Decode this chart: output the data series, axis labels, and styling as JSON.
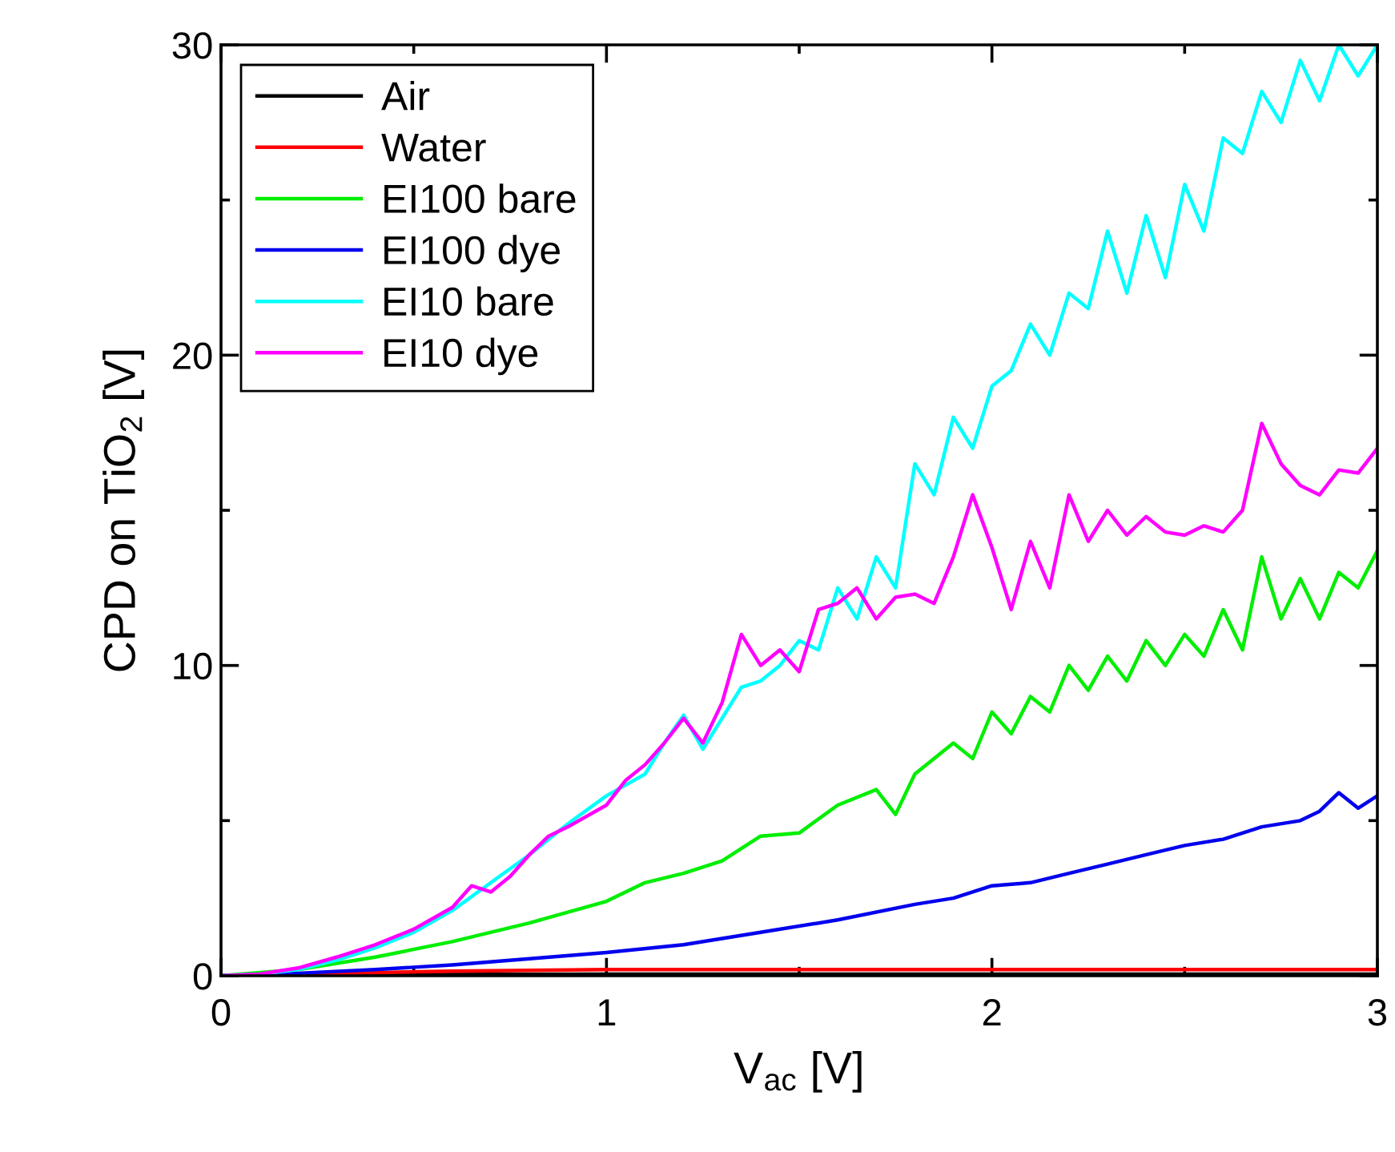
{
  "chart_data": {
    "type": "line",
    "xlabel": "V$_{ac}$ [V]",
    "ylabel": "CPD on TiO$_{2}$ [V]",
    "xlim": [
      0,
      3
    ],
    "ylim": [
      0,
      30
    ],
    "xticks": [
      0,
      1,
      2,
      3
    ],
    "yticks": [
      0,
      10,
      20,
      30
    ],
    "grid": false,
    "legend": "top left",
    "marker": "none",
    "line_style": "solid",
    "series": [
      {
        "name": "Air",
        "color": "#000000",
        "x": [
          0,
          0.2,
          0.5,
          1,
          1.5,
          2,
          2.5,
          3
        ],
        "values": [
          0,
          0.02,
          0.04,
          0.05,
          0.05,
          0.05,
          0.05,
          0.05
        ]
      },
      {
        "name": "Water",
        "color": "#ff0000",
        "x": [
          0,
          0.4,
          0.6,
          1,
          1.5,
          2,
          2.5,
          3
        ],
        "values": [
          0,
          0.1,
          0.15,
          0.2,
          0.2,
          0.2,
          0.2,
          0.2
        ]
      },
      {
        "name": "EI100 bare",
        "color": "#00ee00",
        "x": [
          0,
          0.2,
          0.4,
          0.6,
          0.8,
          1.0,
          1.1,
          1.2,
          1.3,
          1.4,
          1.5,
          1.6,
          1.7,
          1.75,
          1.8,
          1.9,
          1.95,
          2.0,
          2.05,
          2.1,
          2.15,
          2.2,
          2.25,
          2.3,
          2.35,
          2.4,
          2.45,
          2.5,
          2.55,
          2.6,
          2.65,
          2.7,
          2.75,
          2.8,
          2.85,
          2.9,
          2.95,
          3.0
        ],
        "values": [
          0,
          0.2,
          0.6,
          1.1,
          1.7,
          2.4,
          3.0,
          3.3,
          3.7,
          4.5,
          4.6,
          5.5,
          6.0,
          5.2,
          6.5,
          7.5,
          7.0,
          8.5,
          7.8,
          9.0,
          8.5,
          10.0,
          9.2,
          10.3,
          9.5,
          10.8,
          10.0,
          11.0,
          10.3,
          11.8,
          10.5,
          13.5,
          11.5,
          12.8,
          11.5,
          13.0,
          12.5,
          13.7
        ]
      },
      {
        "name": "EI100 dye",
        "color": "#0000ee",
        "x": [
          0,
          0.2,
          0.4,
          0.6,
          0.8,
          1.0,
          1.2,
          1.4,
          1.6,
          1.8,
          1.9,
          2.0,
          2.1,
          2.2,
          2.3,
          2.4,
          2.5,
          2.6,
          2.7,
          2.8,
          2.85,
          2.9,
          2.95,
          3.0
        ],
        "values": [
          0,
          0.08,
          0.2,
          0.35,
          0.55,
          0.75,
          1.0,
          1.4,
          1.8,
          2.3,
          2.5,
          2.9,
          3.0,
          3.3,
          3.6,
          3.9,
          4.2,
          4.4,
          4.8,
          5.0,
          5.3,
          5.9,
          5.4,
          5.8
        ]
      },
      {
        "name": "EI10 bare",
        "color": "#00ffff",
        "x": [
          0,
          0.1,
          0.2,
          0.3,
          0.4,
          0.5,
          0.6,
          0.7,
          0.8,
          0.9,
          1.0,
          1.1,
          1.15,
          1.2,
          1.25,
          1.3,
          1.35,
          1.4,
          1.45,
          1.5,
          1.55,
          1.6,
          1.65,
          1.7,
          1.75,
          1.8,
          1.85,
          1.9,
          1.95,
          2.0,
          2.05,
          2.1,
          2.15,
          2.2,
          2.25,
          2.3,
          2.35,
          2.4,
          2.45,
          2.5,
          2.55,
          2.6,
          2.65,
          2.7,
          2.75,
          2.8,
          2.85,
          2.9,
          2.95,
          3.0
        ],
        "values": [
          0,
          0.05,
          0.2,
          0.5,
          0.9,
          1.4,
          2.1,
          3.0,
          3.9,
          4.9,
          5.8,
          6.5,
          7.5,
          8.4,
          7.3,
          8.3,
          9.3,
          9.5,
          10.0,
          10.8,
          10.5,
          12.5,
          11.5,
          13.5,
          12.5,
          16.5,
          15.5,
          18.0,
          17.0,
          19.0,
          19.5,
          21.0,
          20.0,
          22.0,
          21.5,
          24.0,
          22.0,
          24.5,
          22.5,
          25.5,
          24.0,
          27.0,
          26.5,
          28.5,
          27.5,
          29.5,
          28.2,
          30,
          29.0,
          30
        ]
      },
      {
        "name": "EI10 dye",
        "color": "#ff00ff",
        "x": [
          0,
          0.1,
          0.2,
          0.3,
          0.4,
          0.5,
          0.6,
          0.65,
          0.7,
          0.75,
          0.8,
          0.85,
          0.9,
          1.0,
          1.05,
          1.1,
          1.15,
          1.2,
          1.25,
          1.3,
          1.35,
          1.4,
          1.45,
          1.5,
          1.55,
          1.6,
          1.65,
          1.7,
          1.75,
          1.8,
          1.85,
          1.9,
          1.95,
          2.0,
          2.05,
          2.1,
          2.15,
          2.2,
          2.25,
          2.3,
          2.35,
          2.4,
          2.45,
          2.5,
          2.55,
          2.6,
          2.65,
          2.7,
          2.75,
          2.8,
          2.85,
          2.9,
          2.95,
          3.0
        ],
        "values": [
          0,
          0.05,
          0.25,
          0.6,
          1.0,
          1.5,
          2.2,
          2.9,
          2.7,
          3.2,
          3.9,
          4.5,
          4.8,
          5.5,
          6.3,
          6.8,
          7.5,
          8.3,
          7.5,
          8.8,
          11.0,
          10.0,
          10.5,
          9.8,
          11.8,
          12.0,
          12.5,
          11.5,
          12.2,
          12.3,
          12.0,
          13.5,
          15.5,
          13.8,
          11.8,
          14.0,
          12.5,
          15.5,
          14.0,
          15.0,
          14.2,
          14.8,
          14.3,
          14.2,
          14.5,
          14.3,
          15.0,
          17.8,
          16.5,
          15.8,
          15.5,
          16.3,
          16.2,
          17.0
        ]
      }
    ]
  }
}
